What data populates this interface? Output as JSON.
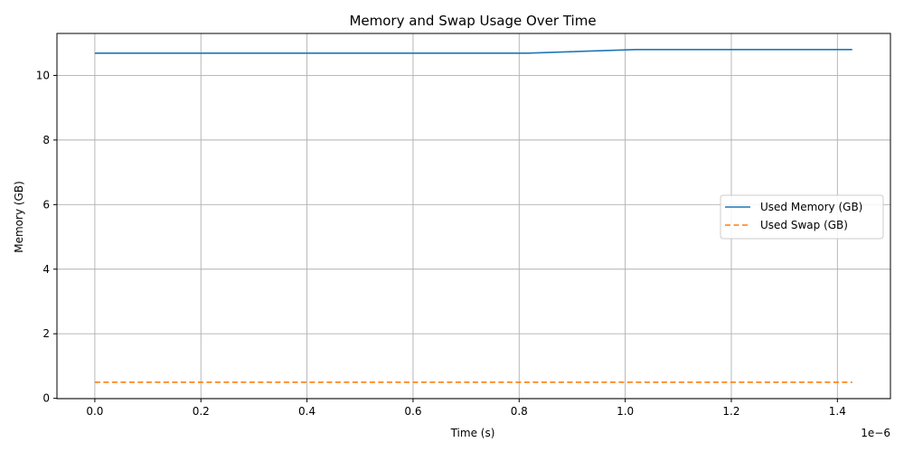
{
  "chart_data": {
    "type": "line",
    "title": "Memory and Swap Usage Over Time",
    "xlabel": "Time (s)",
    "ylabel": "Memory (GB)",
    "x_offset_label": "1e−6",
    "xlim": [
      -7.14e-08,
      1.5e-06
    ],
    "ylim": [
      -0.01,
      11.3
    ],
    "xticks": [
      0,
      2e-07,
      4e-07,
      6e-07,
      8e-07,
      1e-06,
      1.2e-06,
      1.4e-06
    ],
    "xtick_labels": [
      "0.0",
      "0.2",
      "0.4",
      "0.6",
      "0.8",
      "1.0",
      "1.2",
      "1.4"
    ],
    "yticks": [
      0,
      2,
      4,
      6,
      8,
      10
    ],
    "ytick_labels": [
      "0",
      "2",
      "4",
      "6",
      "8",
      "10"
    ],
    "grid": true,
    "legend_position": "center-right",
    "series": [
      {
        "name": "Used Memory (GB)",
        "color": "#1f77b4",
        "style": "solid",
        "x": [
          0,
          8.16e-07,
          1.02e-06,
          1.428e-06
        ],
        "values": [
          10.69,
          10.69,
          10.8,
          10.8
        ]
      },
      {
        "name": "Used Swap (GB)",
        "color": "#ff7f0e",
        "style": "dashed",
        "x": [
          0,
          8.16e-07,
          1.02e-06,
          1.428e-06
        ],
        "values": [
          0.5,
          0.5,
          0.5,
          0.5
        ]
      }
    ]
  }
}
